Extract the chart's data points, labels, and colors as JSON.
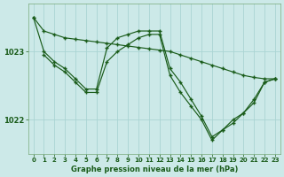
{
  "background_color": "#cce9e8",
  "grid_color": "#aad4d3",
  "line_color": "#1a5c1a",
  "marker_color": "#1a5c1a",
  "xlabel": "Graphe pression niveau de la mer (hPa)",
  "ylim": [
    1021.5,
    1023.7
  ],
  "xlim": [
    -0.5,
    23.5
  ],
  "yticks": [
    1022,
    1023
  ],
  "xticks": [
    0,
    1,
    2,
    3,
    4,
    5,
    6,
    7,
    8,
    9,
    10,
    11,
    12,
    13,
    14,
    15,
    16,
    17,
    18,
    19,
    20,
    21,
    22,
    23
  ],
  "series": [
    {
      "x": [
        0,
        1,
        2,
        3,
        4,
        5,
        6,
        7,
        8,
        9,
        10,
        11,
        12,
        13,
        14,
        15,
        16,
        17,
        18,
        19,
        20,
        21,
        22,
        23
      ],
      "y": [
        1023.5,
        1023.3,
        1023.25,
        1023.2,
        1023.18,
        1023.16,
        1023.14,
        1023.12,
        1023.1,
        1023.08,
        1023.06,
        1023.04,
        1023.02,
        1023.0,
        1022.95,
        1022.9,
        1022.85,
        1022.8,
        1022.75,
        1022.7,
        1022.65,
        1022.62,
        1022.6,
        1022.6
      ]
    },
    {
      "x": [
        0,
        1,
        2,
        3,
        4,
        5,
        6,
        7,
        8,
        9,
        10,
        11,
        12,
        13,
        14,
        15,
        16,
        17,
        18,
        19,
        20,
        21,
        22,
        23
      ],
      "y": [
        1023.5,
        1023.0,
        1022.85,
        1022.75,
        1022.6,
        1022.45,
        1022.45,
        1023.05,
        1023.2,
        1023.25,
        1023.3,
        1023.3,
        1023.3,
        1022.75,
        1022.55,
        1022.3,
        1022.05,
        1021.75,
        1021.85,
        1022.0,
        1022.1,
        1022.3,
        1022.55,
        1022.6
      ]
    },
    {
      "x": [
        1,
        2,
        3,
        4,
        5,
        6,
        7,
        8,
        9,
        10,
        11,
        12,
        13,
        14,
        15,
        16,
        17,
        18,
        19,
        20,
        21,
        22,
        23
      ],
      "y": [
        1022.95,
        1022.8,
        1022.7,
        1022.55,
        1022.4,
        1022.4,
        1022.85,
        1023.0,
        1023.1,
        1023.2,
        1023.25,
        1023.25,
        1022.65,
        1022.4,
        1022.2,
        1022.0,
        1021.7,
        1021.85,
        1021.95,
        1022.1,
        1022.25,
        1022.55,
        1022.6
      ]
    }
  ]
}
